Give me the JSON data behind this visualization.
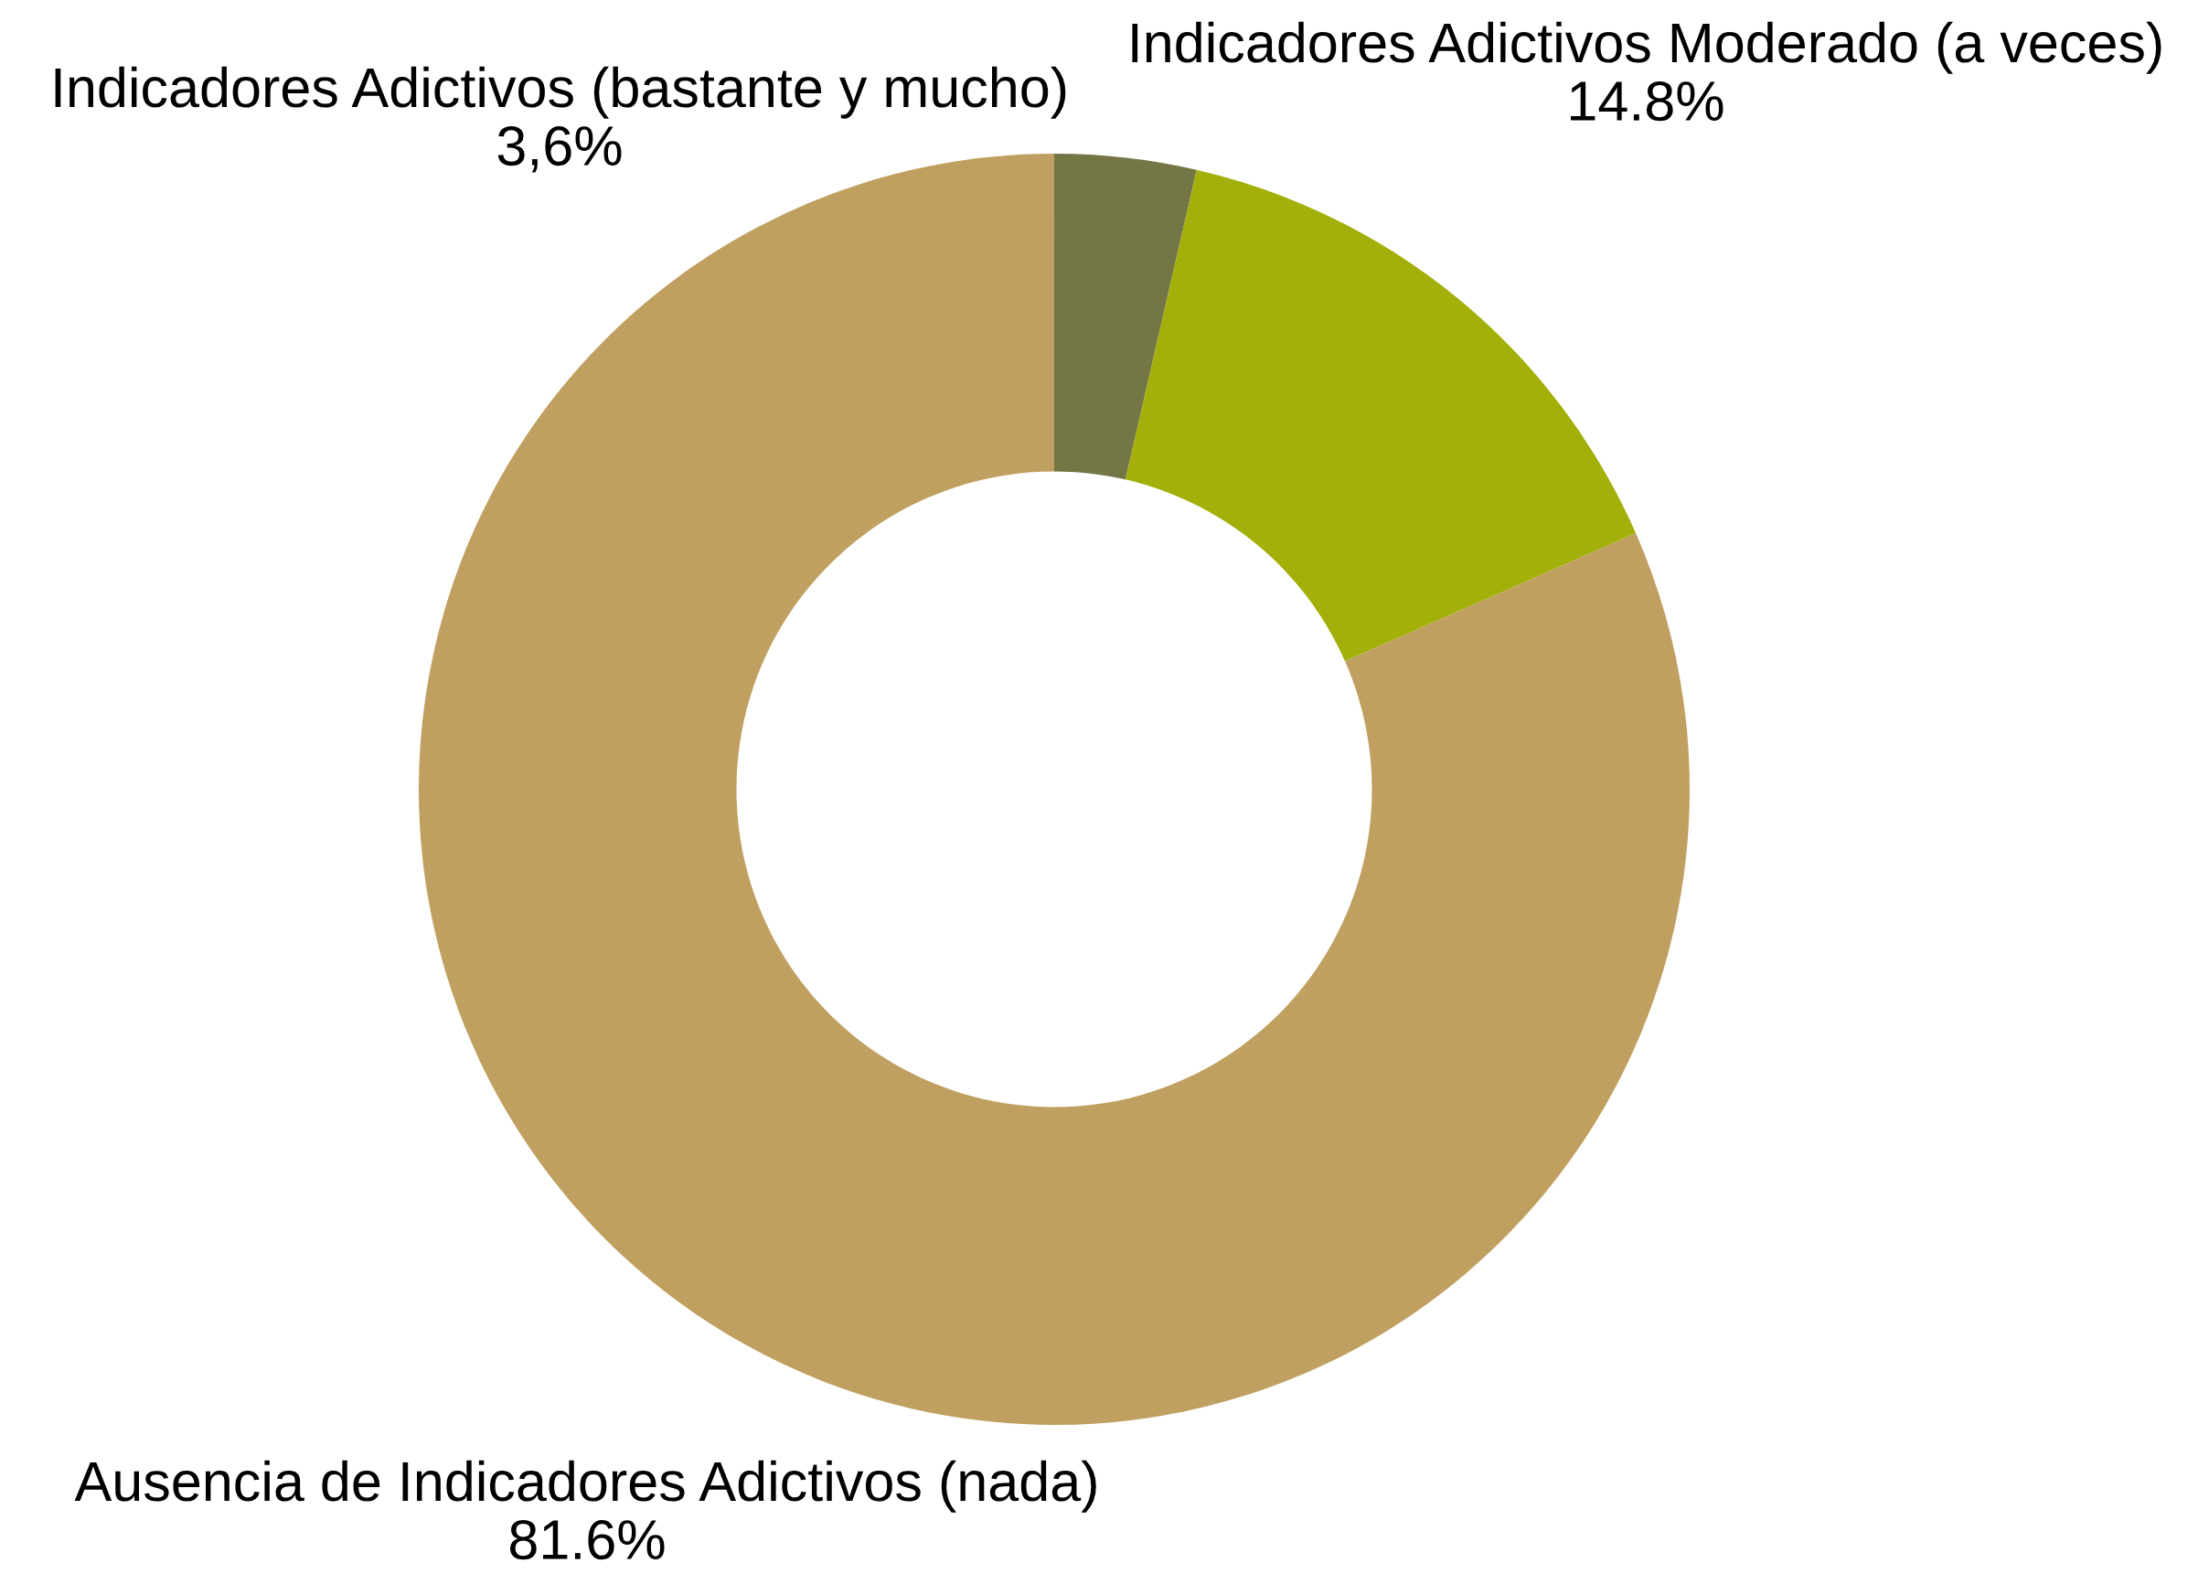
{
  "chart_data": {
    "type": "donut",
    "categories": [
      "Indicadores Adictivos (bastante y mucho)",
      "Indicadores Adictivos Moderado (a veces)",
      "Ausencia de Indicadores Adictivos (nada)"
    ],
    "values": [
      3.6,
      14.8,
      81.6
    ],
    "colors": [
      "#757646",
      "#a3b00a",
      "#c0a060"
    ],
    "value_labels": [
      "3,6%",
      "14.8%",
      "81.6%"
    ]
  }
}
